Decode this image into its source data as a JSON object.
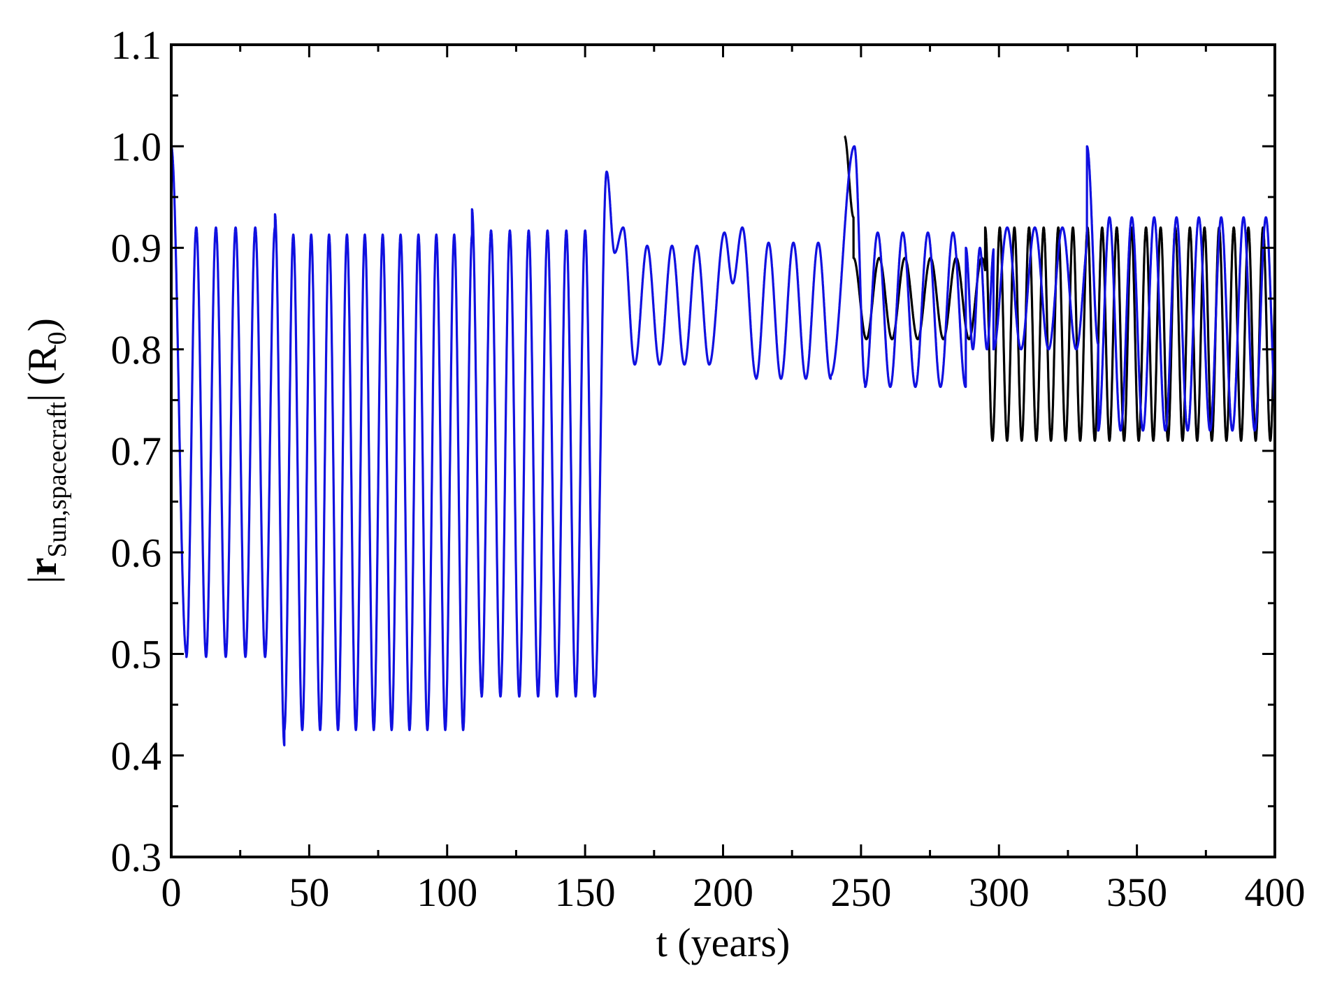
{
  "chart_data": {
    "type": "line",
    "xlabel": "t (years)",
    "ylabel": {
      "bar_left": "|",
      "vector": "r",
      "subscript": "Sun,spacecraft",
      "bar_right": "|",
      "unit_open": "(R",
      "unit_sub": "0",
      "unit_close": ")"
    },
    "xlim": [
      0,
      400
    ],
    "ylim": [
      0.3,
      1.1
    ],
    "x_ticks": [
      0,
      50,
      100,
      150,
      200,
      250,
      300,
      350,
      400
    ],
    "x_tick_labels": [
      "0",
      "50",
      "100",
      "150",
      "200",
      "250",
      "300",
      "350",
      "400"
    ],
    "y_ticks": [
      0.3,
      0.4,
      0.5,
      0.6,
      0.7,
      0.8,
      0.9,
      1.0,
      1.1
    ],
    "y_tick_labels": [
      "0.3",
      "0.4",
      "0.5",
      "0.6",
      "0.7",
      "0.8",
      "0.9",
      "1.0",
      "1.1"
    ],
    "grid": false,
    "legend": "none",
    "colors": {
      "series_black": "#000000",
      "series_blue": "#1010e0",
      "axes": "#000000"
    },
    "series": [
      {
        "color": "#000000",
        "segments": [
          {
            "x0": 244,
            "x1": 247.3,
            "period": 6.6,
            "max": 1.01,
            "min": 0.93,
            "phase": "max"
          },
          {
            "x0": 247.3,
            "x1": 295,
            "period": 9.3,
            "max": 0.89,
            "min": 0.81,
            "phase": "max"
          },
          {
            "x0": 295,
            "x1": 400,
            "period": 5.3,
            "max": 0.92,
            "min": 0.71,
            "phase": "max"
          }
        ]
      },
      {
        "color": "#1010e0",
        "segments": [
          {
            "x0": 0,
            "x1": 5.5,
            "period": 11.0,
            "max": 1.0,
            "min": 0.5,
            "phase": "max"
          },
          {
            "x0": 5.5,
            "x1": 37.6,
            "period": 7.13,
            "max": 0.92,
            "min": 0.497,
            "phase": "min"
          },
          {
            "x0": 37.6,
            "x1": 41.0,
            "period": 6.8,
            "max": 0.933,
            "min": 0.41,
            "phase": "max"
          },
          {
            "x0": 41.0,
            "x1": 109.0,
            "period": 6.48,
            "max": 0.913,
            "min": 0.425,
            "phase": "min"
          },
          {
            "x0": 109.0,
            "x1": 112.5,
            "period": 7.0,
            "max": 0.938,
            "min": 0.46,
            "phase": "max"
          },
          {
            "x0": 112.5,
            "x1": 153.5,
            "period": 6.82,
            "max": 0.917,
            "min": 0.458,
            "phase": "min"
          },
          {
            "x0": 153.5,
            "x1": 157.8,
            "period": 8.6,
            "max": 0.975,
            "min": 0.458,
            "phase": "min"
          },
          {
            "x0": 157.8,
            "x1": 160.7,
            "period": 5.8,
            "max": 0.975,
            "min": 0.895,
            "phase": "max"
          },
          {
            "x0": 160.7,
            "x1": 163.8,
            "period": 6.2,
            "max": 0.92,
            "min": 0.895,
            "phase": "min"
          },
          {
            "x0": 163.8,
            "x1": 168.0,
            "period": 8.4,
            "max": 0.92,
            "min": 0.785,
            "phase": "max"
          },
          {
            "x0": 168.0,
            "x1": 195.0,
            "period": 9.0,
            "max": 0.902,
            "min": 0.785,
            "phase": "min"
          },
          {
            "x0": 195.0,
            "x1": 200.5,
            "period": 11.0,
            "max": 0.915,
            "min": 0.785,
            "phase": "min"
          },
          {
            "x0": 200.5,
            "x1": 203.5,
            "period": 6.0,
            "max": 0.915,
            "min": 0.865,
            "phase": "max"
          },
          {
            "x0": 203.5,
            "x1": 207.0,
            "period": 7.0,
            "max": 0.92,
            "min": 0.865,
            "phase": "min"
          },
          {
            "x0": 207.0,
            "x1": 212.0,
            "period": 10.0,
            "max": 0.92,
            "min": 0.772,
            "phase": "max"
          },
          {
            "x0": 212.0,
            "x1": 239.0,
            "period": 9.0,
            "max": 0.905,
            "min": 0.771,
            "phase": "min"
          },
          {
            "x0": 239.0,
            "x1": 247.6,
            "period": 17.2,
            "max": 1.0,
            "min": 0.774,
            "phase": "min"
          },
          {
            "x0": 247.6,
            "x1": 251.5,
            "period": 7.8,
            "max": 1.0,
            "min": 0.766,
            "phase": "max"
          },
          {
            "x0": 251.5,
            "x1": 288.0,
            "period": 9.1,
            "max": 0.915,
            "min": 0.763,
            "phase": "min"
          },
          {
            "x0": 288.0,
            "x1": 298.0,
            "period": 5.1,
            "max": 0.9,
            "min": 0.8,
            "phase": "max"
          },
          {
            "x0": 298.0,
            "x1": 331.9,
            "period": 10.0,
            "max": 0.92,
            "min": 0.8,
            "phase": "min"
          },
          {
            "x0": 331.9,
            "x1": 336.0,
            "period": 8.2,
            "max": 1.0,
            "min": 0.805,
            "phase": "max"
          },
          {
            "x0": 336.0,
            "x1": 400,
            "period": 8.1,
            "max": 0.93,
            "min": 0.72,
            "phase": "min"
          }
        ]
      }
    ]
  }
}
